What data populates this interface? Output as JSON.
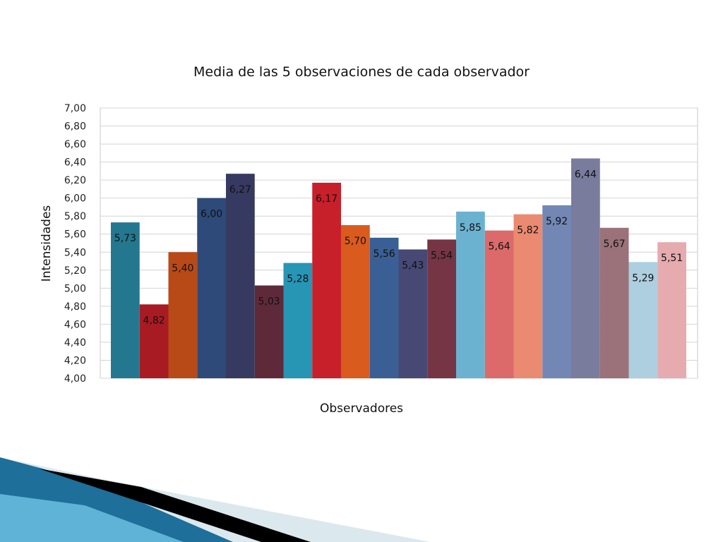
{
  "chart_data": {
    "type": "bar",
    "title": "Media de las 5 observaciones de cada observador",
    "xlabel": "Observadores",
    "ylabel": "Intensidades",
    "ylim": [
      4.0,
      7.0
    ],
    "ytick_step": 0.2,
    "yticks": [
      "4,00",
      "4,20",
      "4,40",
      "4,60",
      "4,80",
      "5,00",
      "5,20",
      "5,40",
      "5,60",
      "5,80",
      "6,00",
      "6,20",
      "6,40",
      "6,60",
      "6,80",
      "7,00"
    ],
    "grid": true,
    "legend": "none",
    "values": [
      5.73,
      4.82,
      5.4,
      6.0,
      6.27,
      5.03,
      5.28,
      6.17,
      5.7,
      5.56,
      5.43,
      5.54,
      5.85,
      5.64,
      5.82,
      5.92,
      6.44,
      5.67,
      5.29,
      5.51
    ],
    "labels": [
      "5,73",
      "4,82",
      "5,40",
      "6,00",
      "6,27",
      "5,03",
      "5,28",
      "6,17",
      "5,70",
      "5,56",
      "5,43",
      "5,54",
      "5,85",
      "5,64",
      "5,82",
      "5,92",
      "6,44",
      "5,67",
      "5,29",
      "5,51"
    ],
    "colors": [
      "#23788f",
      "#a91b22",
      "#b84a18",
      "#2d4a78",
      "#363a60",
      "#5e2a3a",
      "#2796b4",
      "#c8202a",
      "#d95b1e",
      "#3a5f94",
      "#484874",
      "#753545",
      "#6bb2d0",
      "#dc6a6a",
      "#ea8a70",
      "#7287b4",
      "#7a7c9e",
      "#9b7279",
      "#adcfdf",
      "#e6abaf"
    ]
  },
  "theme": {
    "grid_color": "#d4d4d4",
    "decoration_colors": [
      "#1e6f9a",
      "#5fb3d6",
      "#000000",
      "#dbe9ee"
    ]
  }
}
